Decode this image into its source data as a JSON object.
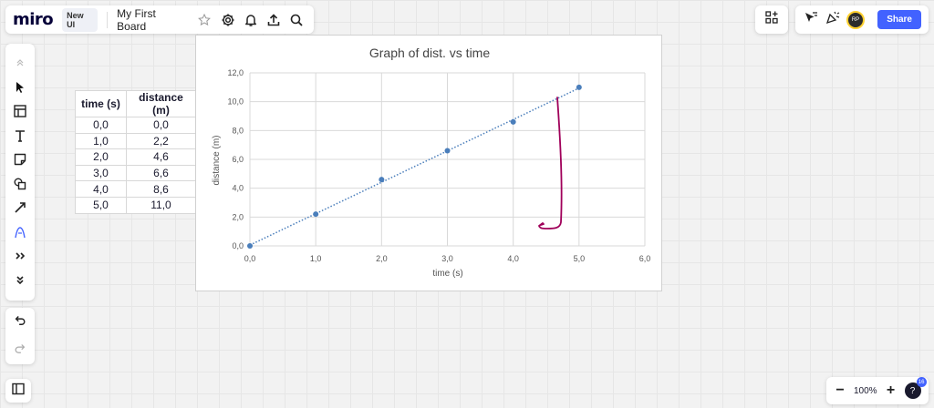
{
  "app": {
    "logo": "miro",
    "new_ui_badge": "New UI",
    "board_title": "My First Board",
    "share_label": "Share",
    "zoom_level": "100%",
    "help_badge": "16",
    "avatar_initials": "RP"
  },
  "icons": {
    "topbar": [
      "star-icon",
      "settings-icon",
      "bell-icon",
      "upload-icon",
      "search-icon"
    ],
    "left_toolbar": [
      "chevron-up-icon",
      "select-arrow-icon",
      "template-icon",
      "text-icon",
      "sticky-note-icon",
      "shapes-icon",
      "line-arrow-icon",
      "pen-icon",
      "more-tools-icon",
      "chevron-down-icon"
    ]
  },
  "colors": {
    "accent": "#4262ff",
    "data_point": "#4a7ebb",
    "trendline": "#4a7ebb",
    "pen_stroke": "#a0005a"
  },
  "table": {
    "headers": [
      "time (s)",
      "distance (m)"
    ],
    "rows": [
      [
        "0,0",
        "0,0"
      ],
      [
        "1,0",
        "2,2"
      ],
      [
        "2,0",
        "4,6"
      ],
      [
        "3,0",
        "6,6"
      ],
      [
        "4,0",
        "8,6"
      ],
      [
        "5,0",
        "11,0"
      ]
    ]
  },
  "chart_data": {
    "type": "scatter",
    "title": "Graph of dist. vs time",
    "xlabel": "time (s)",
    "ylabel": "distance (m)",
    "xlim": [
      0,
      6
    ],
    "ylim": [
      0,
      12
    ],
    "x_ticks": [
      "0,0",
      "1,0",
      "2,0",
      "3,0",
      "4,0",
      "5,0",
      "6,0"
    ],
    "y_ticks": [
      "0,0",
      "2,0",
      "4,0",
      "6,0",
      "8,0",
      "10,0",
      "12,0"
    ],
    "x": [
      0,
      1,
      2,
      3,
      4,
      5
    ],
    "y": [
      0,
      2.2,
      4.6,
      6.6,
      8.6,
      11.0
    ],
    "trendline": "linear, dotted",
    "grid": true
  }
}
